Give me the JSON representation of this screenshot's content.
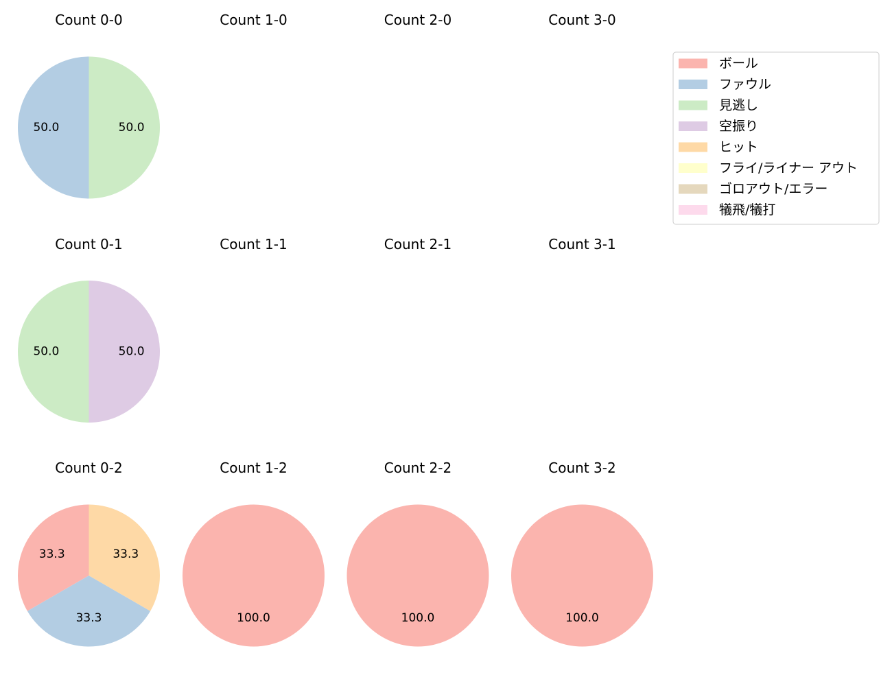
{
  "chart_data": {
    "type": "pie",
    "legend": {
      "placement": "top-right",
      "entries": [
        {
          "label": "ボール",
          "color": "#fbb4ae"
        },
        {
          "label": "ファウル",
          "color": "#b3cde3"
        },
        {
          "label": "見逃し",
          "color": "#ccebc5"
        },
        {
          "label": "空振り",
          "color": "#decbe4"
        },
        {
          "label": "ヒット",
          "color": "#fed9a6"
        },
        {
          "label": "フライ/ライナー アウト",
          "color": "#ffffcc"
        },
        {
          "label": "ゴロアウト/エラー",
          "color": "#e5d8bd"
        },
        {
          "label": "犠飛/犠打",
          "color": "#fddaec"
        }
      ]
    },
    "panels": [
      {
        "title": "Count 0-0",
        "slices": [
          {
            "category": "ファウル",
            "value": 50.0,
            "label": "50.0"
          },
          {
            "category": "見逃し",
            "value": 50.0,
            "label": "50.0"
          }
        ]
      },
      {
        "title": "Count 1-0",
        "slices": []
      },
      {
        "title": "Count 2-0",
        "slices": []
      },
      {
        "title": "Count 3-0",
        "slices": []
      },
      {
        "title": "Count 0-1",
        "slices": [
          {
            "category": "見逃し",
            "value": 50.0,
            "label": "50.0"
          },
          {
            "category": "空振り",
            "value": 50.0,
            "label": "50.0"
          }
        ]
      },
      {
        "title": "Count 1-1",
        "slices": []
      },
      {
        "title": "Count 2-1",
        "slices": []
      },
      {
        "title": "Count 3-1",
        "slices": []
      },
      {
        "title": "Count 0-2",
        "slices": [
          {
            "category": "ボール",
            "value": 33.3,
            "label": "33.3"
          },
          {
            "category": "ファウル",
            "value": 33.3,
            "label": "33.3"
          },
          {
            "category": "ヒット",
            "value": 33.3,
            "label": "33.3"
          }
        ]
      },
      {
        "title": "Count 1-2",
        "slices": [
          {
            "category": "ボール",
            "value": 100.0,
            "label": "100.0"
          }
        ]
      },
      {
        "title": "Count 2-2",
        "slices": [
          {
            "category": "ボール",
            "value": 100.0,
            "label": "100.0"
          }
        ]
      },
      {
        "title": "Count 3-2",
        "slices": [
          {
            "category": "ボール",
            "value": 100.0,
            "label": "100.0"
          }
        ]
      }
    ]
  }
}
